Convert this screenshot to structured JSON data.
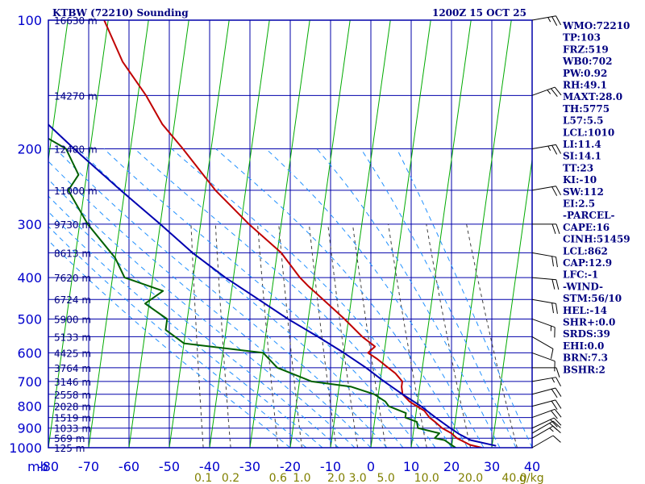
{
  "header": {
    "station": "KTBW (72210) Sounding",
    "datetime": "1200Z 15 OCT 25"
  },
  "chart_data": {
    "type": "line",
    "chart_kind": "skew-t log-p sounding",
    "y_scale": "log-pressure",
    "ylim": [
      1000,
      100
    ],
    "xlim": [
      -80,
      40
    ],
    "pressure_ticks": [
      "100",
      "200",
      "300",
      "400",
      "500",
      "600",
      "700",
      "800",
      "900",
      "1000"
    ],
    "pressure_tick_values": [
      100,
      200,
      300,
      400,
      500,
      600,
      700,
      800,
      900,
      1000
    ],
    "height_ticks": [
      {
        "p": 100,
        "label": "16630 m"
      },
      {
        "p": 150,
        "label": "14270 m"
      },
      {
        "p": 200,
        "label": "12480 m"
      },
      {
        "p": 250,
        "label": "11000 m"
      },
      {
        "p": 300,
        "label": "9730 m"
      },
      {
        "p": 350,
        "label": "8613 m"
      },
      {
        "p": 400,
        "label": "7620 m"
      },
      {
        "p": 450,
        "label": "6724 m"
      },
      {
        "p": 500,
        "label": "5900 m"
      },
      {
        "p": 550,
        "label": "5133 m"
      },
      {
        "p": 600,
        "label": "4425 m"
      },
      {
        "p": 650,
        "label": "3764 m"
      },
      {
        "p": 700,
        "label": "3146 m"
      },
      {
        "p": 750,
        "label": "2558 m"
      },
      {
        "p": 800,
        "label": "2028 m"
      },
      {
        "p": 850,
        "label": "1519 m"
      },
      {
        "p": 900,
        "label": "1033 m"
      },
      {
        "p": 950,
        "label": "569 m"
      },
      {
        "p": 1000,
        "label": "125 m"
      }
    ],
    "x_unit_label": "mb",
    "temperature_ticks": [
      "-80",
      "-70",
      "-60",
      "-50",
      "-40",
      "-30",
      "-20",
      "-10",
      "0",
      "10",
      "20",
      "30",
      "40"
    ],
    "temperature_tick_values": [
      -80,
      -70,
      -60,
      -50,
      -40,
      -30,
      -20,
      -10,
      0,
      10,
      20,
      30,
      40
    ],
    "mixing_ratio_ticks": [
      "0.1",
      "0.2",
      "0.6",
      "1.0",
      "2.0",
      "3.0",
      "5.0",
      "10.0",
      "20.0",
      "40.0"
    ],
    "mixing_ratio_values": [
      0.1,
      0.2,
      0.6,
      1.0,
      2.0,
      3.0,
      5.0,
      10.0,
      20.0,
      40.0
    ],
    "mixing_ratio_unit": "g/kg",
    "series": [
      {
        "role": "temperature",
        "color": "#c00000",
        "points": [
          {
            "p": 1017,
            "t": 26.0
          },
          {
            "p": 1000,
            "t": 27.5
          },
          {
            "p": 985,
            "t": 24.5
          },
          {
            "p": 950,
            "t": 21.0
          },
          {
            "p": 925,
            "t": 19.5
          },
          {
            "p": 900,
            "t": 17.0
          },
          {
            "p": 870,
            "t": 15.0
          },
          {
            "p": 850,
            "t": 13.5
          },
          {
            "p": 820,
            "t": 12.0
          },
          {
            "p": 800,
            "t": 10.0
          },
          {
            "p": 780,
            "t": 8.0
          },
          {
            "p": 750,
            "t": 6.0
          },
          {
            "p": 720,
            "t": 5.5
          },
          {
            "p": 700,
            "t": 5.5
          },
          {
            "p": 670,
            "t": 3.5
          },
          {
            "p": 650,
            "t": 1.5
          },
          {
            "p": 620,
            "t": -1.5
          },
          {
            "p": 600,
            "t": -4.0
          },
          {
            "p": 580,
            "t": -2.5
          },
          {
            "p": 550,
            "t": -6.0
          },
          {
            "p": 500,
            "t": -11.0
          },
          {
            "p": 450,
            "t": -17.0
          },
          {
            "p": 420,
            "t": -21.0
          },
          {
            "p": 400,
            "t": -23.5
          },
          {
            "p": 350,
            "t": -29.0
          },
          {
            "p": 300,
            "t": -38.0
          },
          {
            "p": 250,
            "t": -47.5
          },
          {
            "p": 200,
            "t": -57.0
          },
          {
            "p": 175,
            "t": -63.0
          },
          {
            "p": 150,
            "t": -68.0
          },
          {
            "p": 125,
            "t": -75.0
          },
          {
            "p": 100,
            "t": -81.0
          }
        ]
      },
      {
        "role": "dewpoint",
        "color": "#006000",
        "points": [
          {
            "p": 1017,
            "t": 21.5
          },
          {
            "p": 1000,
            "t": 21.0
          },
          {
            "p": 960,
            "t": 18.0
          },
          {
            "p": 950,
            "t": 15.5
          },
          {
            "p": 925,
            "t": 16.5
          },
          {
            "p": 900,
            "t": 11.0
          },
          {
            "p": 870,
            "t": 10.5
          },
          {
            "p": 850,
            "t": 7.5
          },
          {
            "p": 830,
            "t": 7.5
          },
          {
            "p": 800,
            "t": 3.0
          },
          {
            "p": 780,
            "t": 2.0
          },
          {
            "p": 750,
            "t": -1.0
          },
          {
            "p": 720,
            "t": -7.0
          },
          {
            "p": 700,
            "t": -17.0
          },
          {
            "p": 650,
            "t": -26.0
          },
          {
            "p": 600,
            "t": -30.0
          },
          {
            "p": 570,
            "t": -50.0
          },
          {
            "p": 530,
            "t": -55.0
          },
          {
            "p": 500,
            "t": -55.0
          },
          {
            "p": 460,
            "t": -61.0
          },
          {
            "p": 430,
            "t": -57.0
          },
          {
            "p": 400,
            "t": -67.0
          },
          {
            "p": 360,
            "t": -70.0
          },
          {
            "p": 300,
            "t": -78.0
          },
          {
            "p": 250,
            "t": -84.0
          },
          {
            "p": 230,
            "t": -82.0
          },
          {
            "p": 200,
            "t": -86.0
          },
          {
            "p": 180,
            "t": -95.0
          },
          {
            "p": 150,
            "t": -103.0
          },
          {
            "p": 130,
            "t": -111.0
          }
        ]
      },
      {
        "role": "parcel",
        "color": "#0000b0",
        "points": [
          {
            "p": 990,
            "t": 31.0
          },
          {
            "p": 960,
            "t": 24.5
          },
          {
            "p": 930,
            "t": 21.5
          },
          {
            "p": 900,
            "t": 19.0
          },
          {
            "p": 850,
            "t": 15.0
          },
          {
            "p": 800,
            "t": 11.0
          },
          {
            "p": 750,
            "t": 6.0
          },
          {
            "p": 700,
            "t": 1.0
          },
          {
            "p": 650,
            "t": -4.0
          },
          {
            "p": 600,
            "t": -10.0
          },
          {
            "p": 550,
            "t": -17.0
          },
          {
            "p": 500,
            "t": -25.0
          },
          {
            "p": 450,
            "t": -33.0
          },
          {
            "p": 400,
            "t": -42.0
          },
          {
            "p": 350,
            "t": -51.0
          },
          {
            "p": 300,
            "t": -60.0
          },
          {
            "p": 250,
            "t": -71.0
          },
          {
            "p": 200,
            "t": -84.0
          },
          {
            "p": 170,
            "t": -93.0
          },
          {
            "p": 150,
            "t": -100.0
          }
        ]
      }
    ],
    "winds": [
      {
        "p": 1000,
        "dir": 60,
        "spd": 10
      },
      {
        "p": 950,
        "dir": 60,
        "spd": 15
      },
      {
        "p": 925,
        "dir": 60,
        "spd": 20
      },
      {
        "p": 900,
        "dir": 65,
        "spd": 20
      },
      {
        "p": 850,
        "dir": 70,
        "spd": 20
      },
      {
        "p": 800,
        "dir": 75,
        "spd": 20
      },
      {
        "p": 750,
        "dir": 75,
        "spd": 20
      },
      {
        "p": 700,
        "dir": 80,
        "spd": 15
      },
      {
        "p": 650,
        "dir": 90,
        "spd": 10
      },
      {
        "p": 600,
        "dir": 110,
        "spd": 10
      },
      {
        "p": 550,
        "dir": 120,
        "spd": 10
      },
      {
        "p": 500,
        "dir": 110,
        "spd": 15
      },
      {
        "p": 450,
        "dir": 100,
        "spd": 20
      },
      {
        "p": 400,
        "dir": 95,
        "spd": 20
      },
      {
        "p": 350,
        "dir": 100,
        "spd": 20
      },
      {
        "p": 300,
        "dir": 90,
        "spd": 20
      },
      {
        "p": 250,
        "dir": 80,
        "spd": 20
      },
      {
        "p": 200,
        "dir": 80,
        "spd": 25
      },
      {
        "p": 150,
        "dir": 70,
        "spd": 25
      },
      {
        "p": 100,
        "dir": 80,
        "spd": 25
      }
    ],
    "indices": [
      "WMO:72210",
      "TP:103",
      "FRZ:519",
      "WB0:702",
      "PW:0.92",
      "RH:49.1",
      "MAXT:28.0",
      "TH:5775",
      "L57:5.5",
      "LCL:1010",
      "LI:11.4",
      "SI:14.1",
      "TT:23",
      "KI:-10",
      "SW:112",
      "EI:2.5",
      "-PARCEL-",
      "CAPE:16",
      "CINH:51459",
      "LCL:862",
      "CAP:12.9",
      "LFC:-1",
      "-WIND-",
      "STM:56/10",
      "HEL:-14",
      "SHR+:0.0",
      "SRDS:39",
      "EHI:0.0",
      "BRN:7.3",
      "BSHR:2"
    ]
  }
}
